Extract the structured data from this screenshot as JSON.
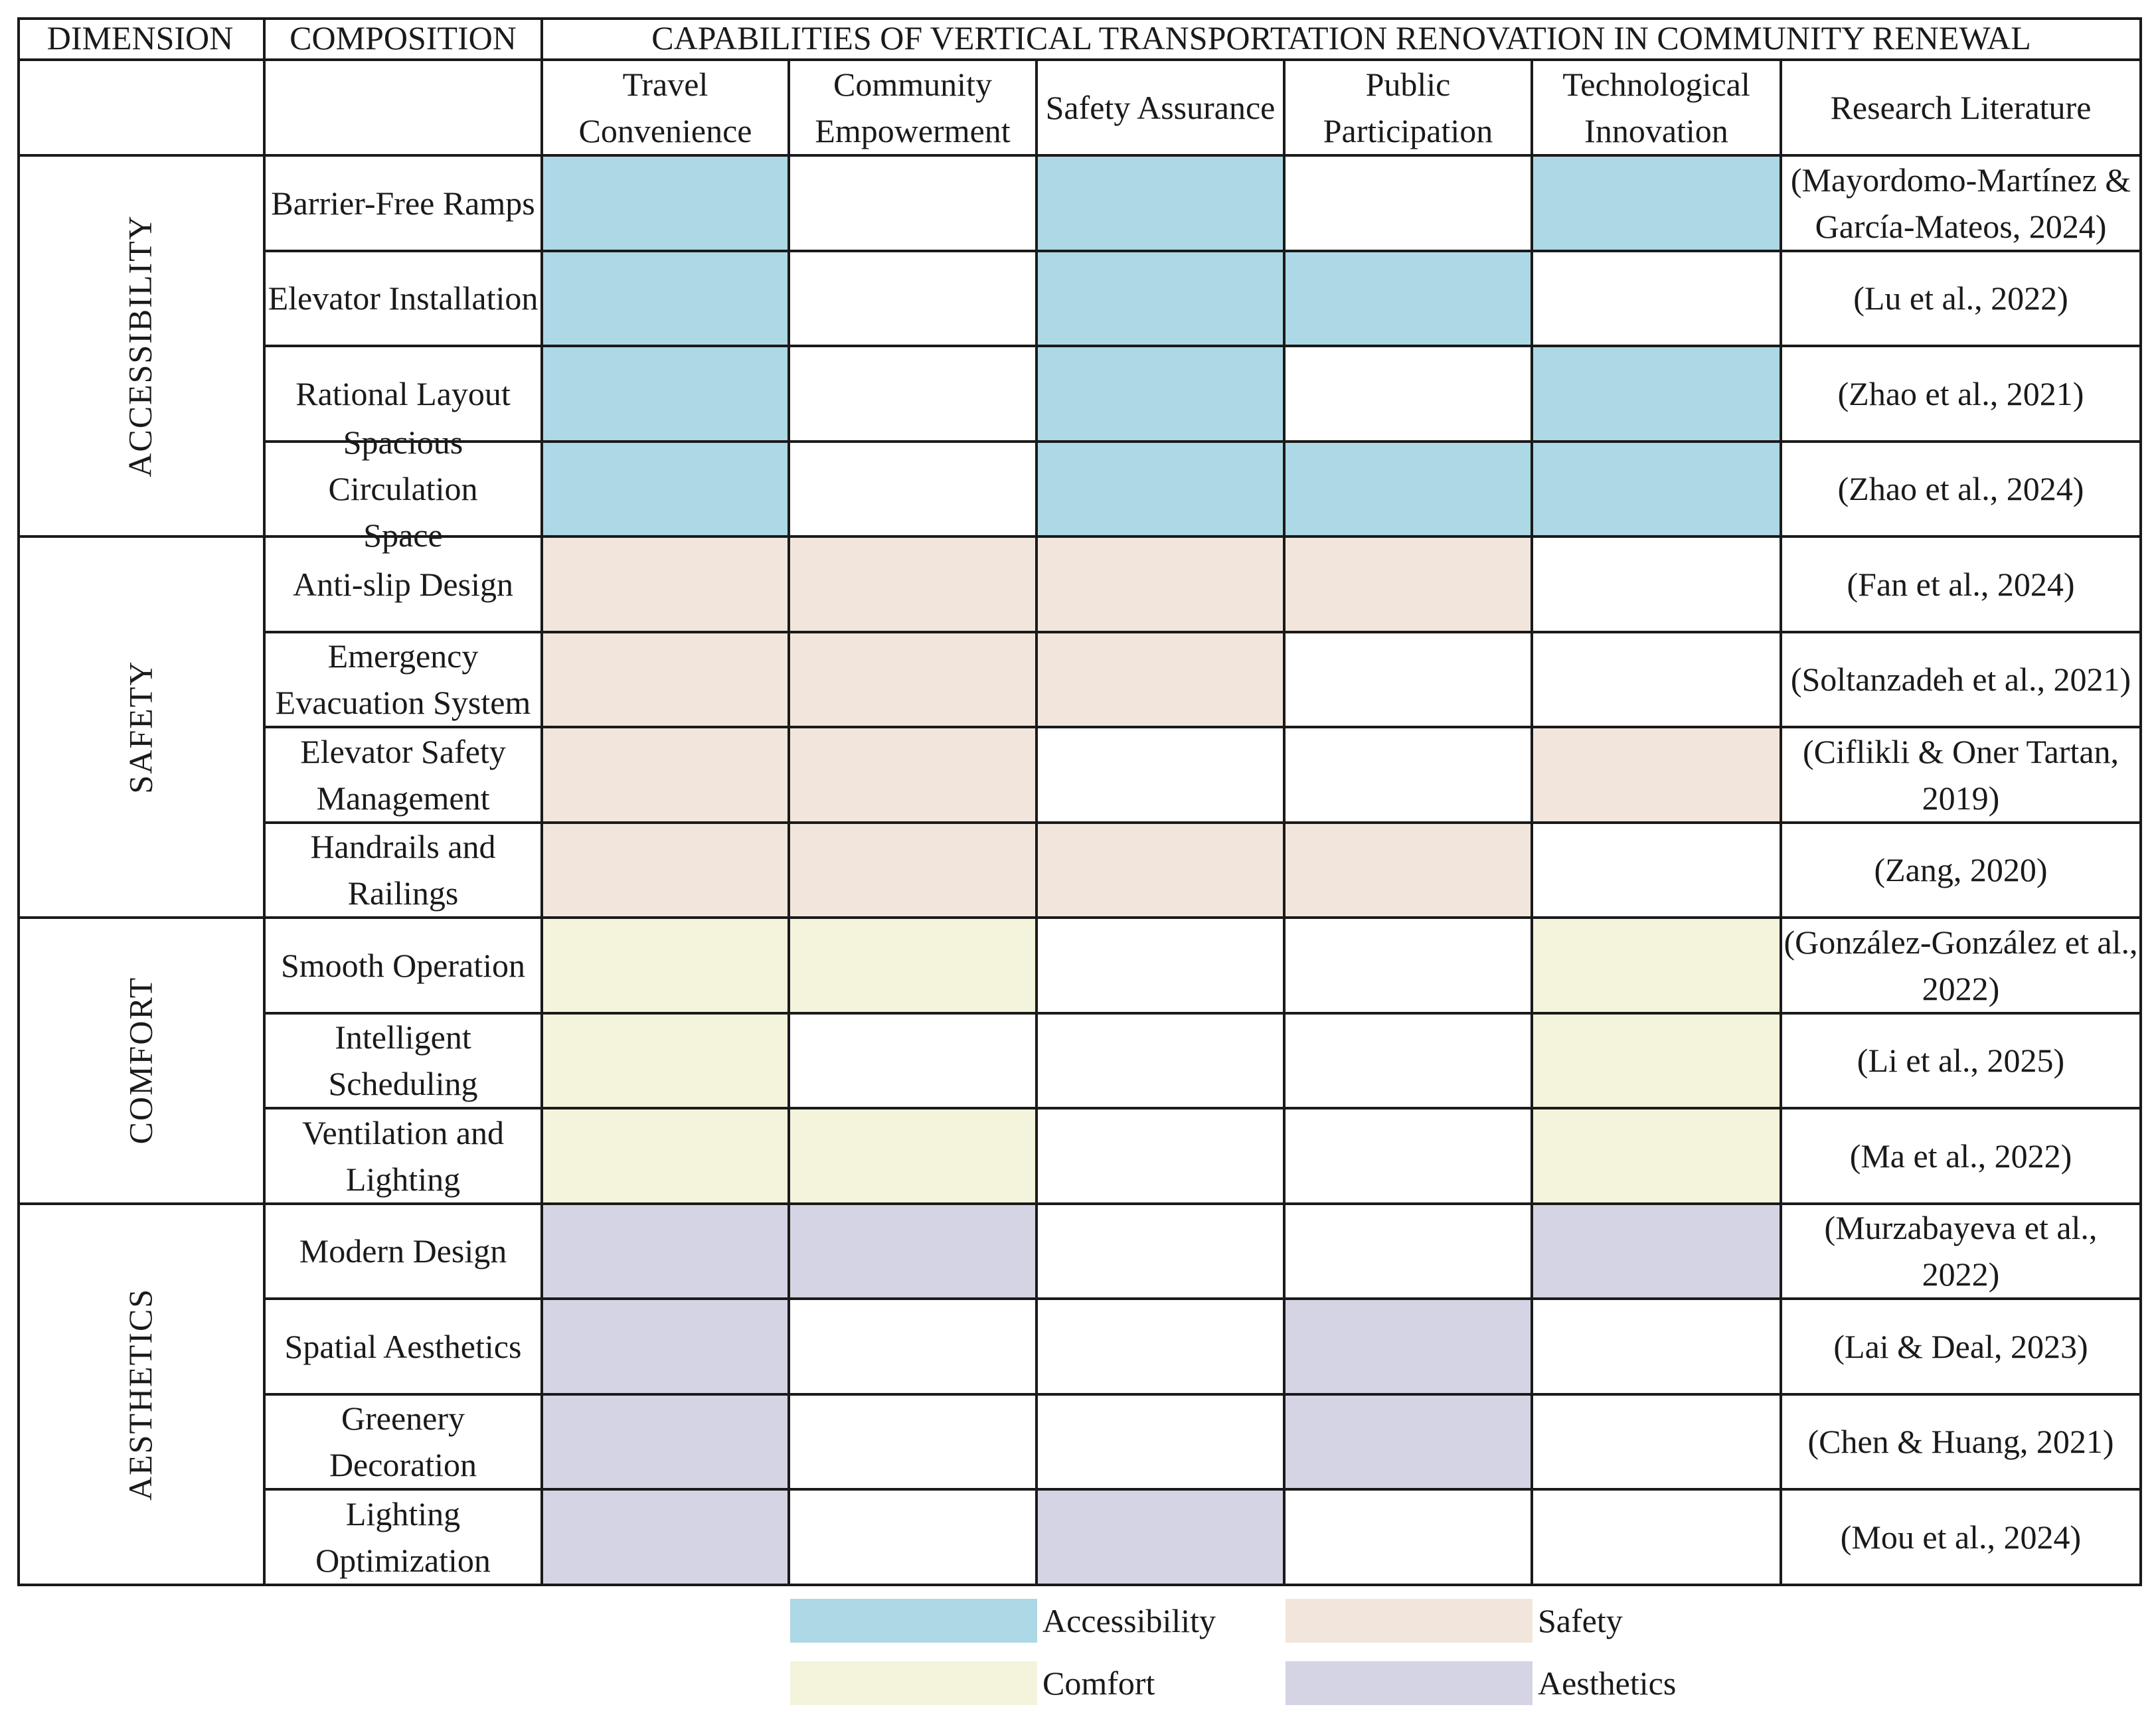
{
  "headers": {
    "dimension": "DIMENSION",
    "composition": "COMPOSITION",
    "capabilities": "CAPABILITIES OF VERTICAL TRANSPORTATION RENOVATION IN COMMUNITY RENEWAL"
  },
  "columns": [
    "Travel\nConvenience",
    "Community\nEmpowerment",
    "Safety Assurance",
    "Public\nParticipation",
    "Technological\nInnovation",
    "Research Literature"
  ],
  "colors": {
    "Accessibility": "#add8e6",
    "Safety": "#f2e6dc",
    "Comfort": "#f4f3db",
    "Aesthetics": "#d4d4e4"
  },
  "groups": [
    {
      "dimension": "ACCESSIBILITY",
      "category": "Accessibility",
      "rows": [
        {
          "composition": "Barrier-Free Ramps",
          "marks": [
            1,
            0,
            1,
            0,
            1
          ],
          "literature": "(Mayordomo-Martínez &\nGarcía-Mateos, 2024)"
        },
        {
          "composition": "Elevator Installation",
          "marks": [
            1,
            0,
            1,
            1,
            0
          ],
          "literature": "(Lu et al., 2022)"
        },
        {
          "composition": "Rational Layout",
          "marks": [
            1,
            0,
            1,
            0,
            1
          ],
          "literature": "(Zhao et al., 2021)"
        },
        {
          "composition": "Spacious Circulation\nSpace",
          "marks": [
            1,
            0,
            1,
            1,
            1
          ],
          "literature": "(Zhao et al., 2024)"
        }
      ]
    },
    {
      "dimension": "SAFETY",
      "category": "Safety",
      "rows": [
        {
          "composition": "Anti-slip Design",
          "marks": [
            1,
            1,
            1,
            1,
            0
          ],
          "literature": "(Fan et al., 2024)"
        },
        {
          "composition": "Emergency\nEvacuation System",
          "marks": [
            1,
            1,
            1,
            0,
            0
          ],
          "literature": "(Soltanzadeh et al., 2021)"
        },
        {
          "composition": "Elevator Safety\nManagement",
          "marks": [
            1,
            1,
            0,
            0,
            1
          ],
          "literature": "(Ciflikli & Oner Tartan,\n2019)"
        },
        {
          "composition": "Handrails and\nRailings",
          "marks": [
            1,
            1,
            1,
            1,
            0
          ],
          "literature": "(Zang, 2020)"
        }
      ]
    },
    {
      "dimension": "COMFORT",
      "category": "Comfort",
      "rows": [
        {
          "composition": "Smooth Operation",
          "marks": [
            1,
            1,
            0,
            0,
            1
          ],
          "literature": "(González-González et al.,\n2022)"
        },
        {
          "composition": "Intelligent\nScheduling",
          "marks": [
            1,
            0,
            0,
            0,
            1
          ],
          "literature": "(Li et al., 2025)"
        },
        {
          "composition": "Ventilation and\nLighting",
          "marks": [
            1,
            1,
            0,
            0,
            1
          ],
          "literature": "(Ma et al., 2022)"
        }
      ]
    },
    {
      "dimension": "AESTHETICS",
      "category": "Aesthetics",
      "rows": [
        {
          "composition": "Modern Design",
          "marks": [
            1,
            1,
            0,
            0,
            1
          ],
          "literature": "(Murzabayeva et al., 2022)"
        },
        {
          "composition": "Spatial Aesthetics",
          "marks": [
            1,
            0,
            0,
            1,
            0
          ],
          "literature": "(Lai & Deal, 2023)"
        },
        {
          "composition": "Greenery Decoration",
          "marks": [
            1,
            0,
            0,
            1,
            0
          ],
          "literature": "(Chen & Huang, 2021)"
        },
        {
          "composition": "Lighting\nOptimization",
          "marks": [
            1,
            0,
            1,
            0,
            0
          ],
          "literature": "(Mou et al., 2024)"
        }
      ]
    }
  ],
  "legend": [
    {
      "label": "Accessibility",
      "category": "Accessibility"
    },
    {
      "label": "Safety",
      "category": "Safety"
    },
    {
      "label": "Comfort",
      "category": "Comfort"
    },
    {
      "label": "Aesthetics",
      "category": "Aesthetics"
    }
  ]
}
